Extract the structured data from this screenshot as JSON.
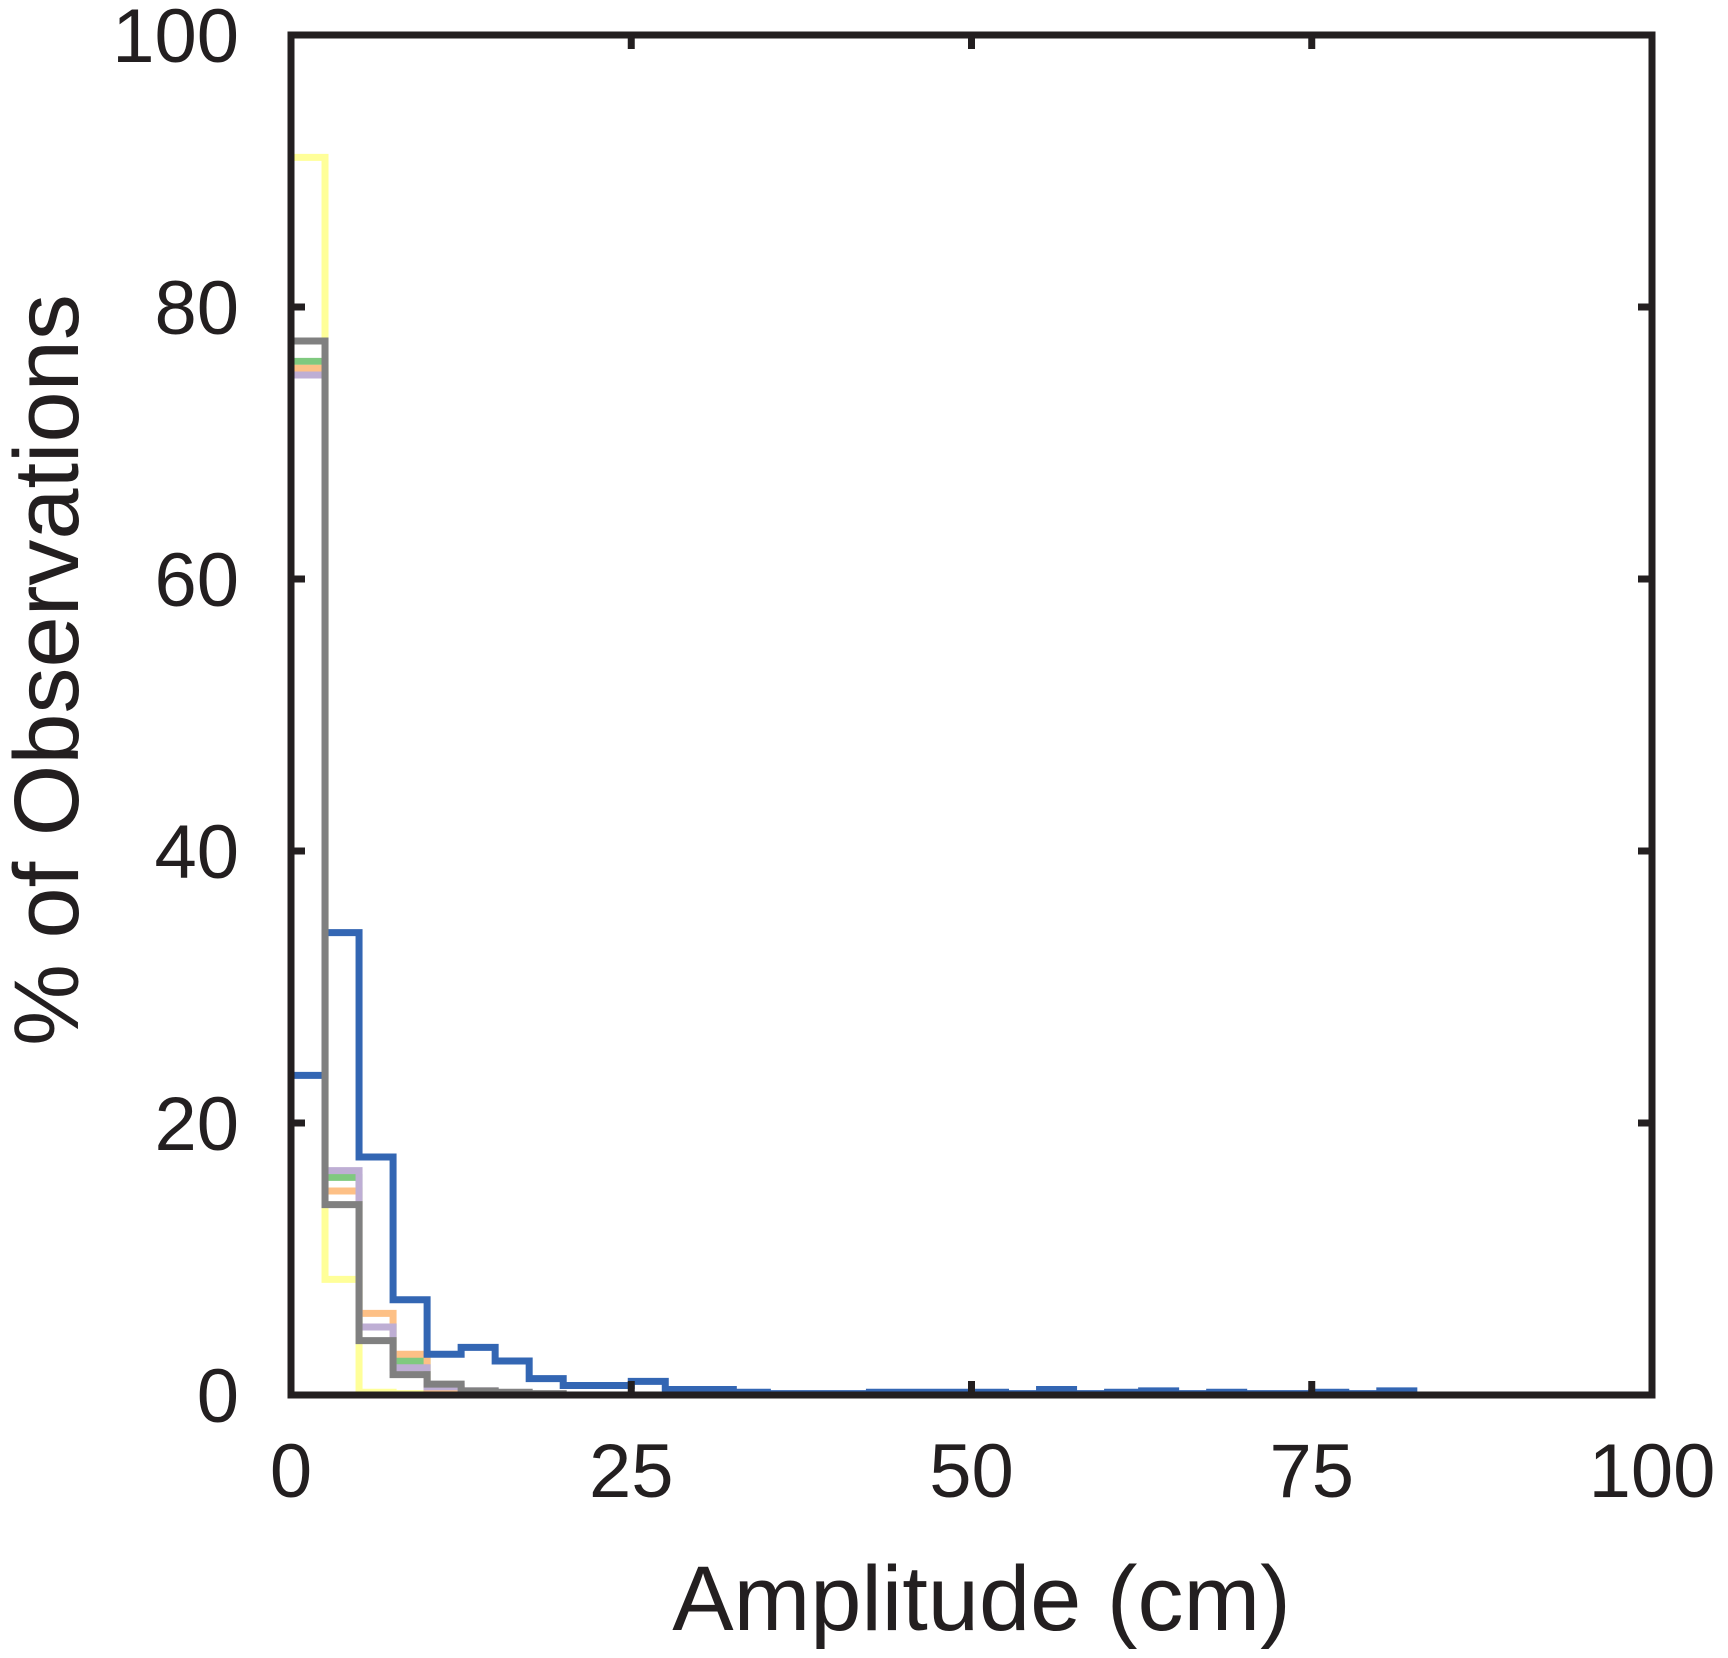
{
  "chart_data": {
    "type": "histogram",
    "title": "",
    "xlabel": "Amplitude (cm)",
    "ylabel": "% of Observations",
    "xlim": [
      0,
      100
    ],
    "ylim": [
      0,
      100
    ],
    "xticks": [
      0,
      25,
      50,
      75,
      100
    ],
    "yticks": [
      0,
      20,
      40,
      60,
      80,
      100
    ],
    "grid": false,
    "legend": "none",
    "bin_width": 2.5,
    "series": [
      {
        "color": "#ffff99",
        "values": [
          91.0,
          8.5,
          0.2,
          0.1,
          0,
          0,
          0,
          0
        ]
      },
      {
        "color": "#7fc97f",
        "values": [
          76.0,
          16.0,
          5.0,
          2.5,
          0.3,
          0.1,
          0,
          0
        ]
      },
      {
        "color": "#fdc086",
        "values": [
          75.5,
          15.0,
          6.0,
          3.0,
          0.4,
          0.2,
          0,
          0
        ]
      },
      {
        "color": "#beaed4",
        "values": [
          75.0,
          16.5,
          5.0,
          2.0,
          0.6,
          0.3,
          0.1,
          0
        ]
      },
      {
        "color": "#3366b3",
        "values": [
          23.5,
          34.0,
          17.5,
          7.0,
          3.0,
          3.5,
          2.5,
          1.2,
          0.7,
          0.7,
          1.0,
          0.4,
          0.4,
          0.2,
          0.1,
          0.1,
          0.1,
          0.2,
          0.2,
          0.2,
          0.2,
          0.1,
          0.4,
          0.1,
          0.2,
          0.3,
          0.1,
          0.2,
          0.1,
          0.1,
          0.2,
          0.1,
          0.3
        ]
      },
      {
        "color": "#808080",
        "values": [
          77.5,
          14.0,
          4.0,
          1.5,
          0.8,
          0.3,
          0.2,
          0.1
        ]
      }
    ]
  }
}
